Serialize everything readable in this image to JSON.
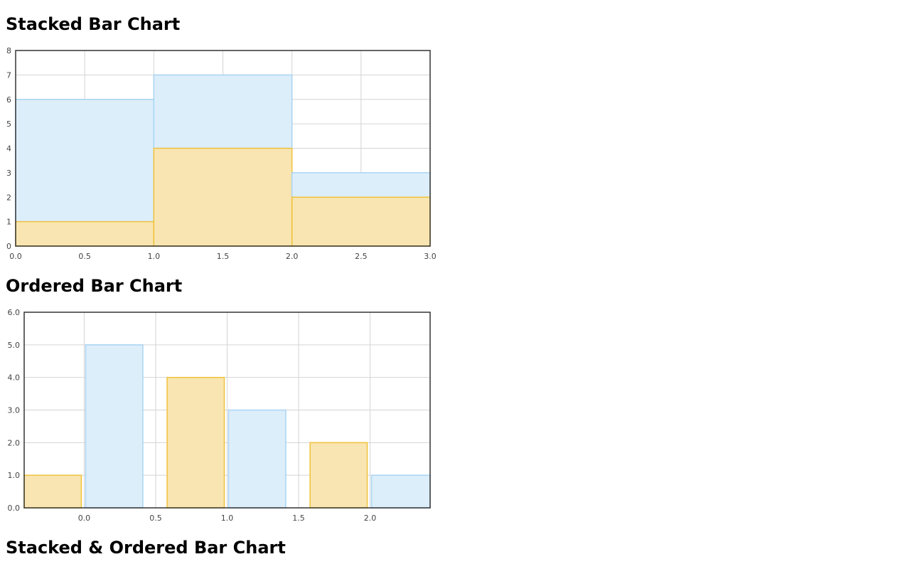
{
  "headings": {
    "stacked": "Stacked Bar Chart",
    "ordered": "Ordered Bar Chart",
    "stacked_ordered": "Stacked & Ordered Bar Chart"
  },
  "colors": {
    "series_a_fill": "#f8e5b1",
    "series_a_stroke": "#f0c23b",
    "series_b_fill": "#ddeefb",
    "series_b_stroke": "#a9d4f2",
    "grid": "#d4d4d4",
    "frame": "#333333"
  },
  "chart_data": [
    {
      "type": "bar",
      "stacked": true,
      "xlim": [
        0,
        3
      ],
      "ylim": [
        0,
        8
      ],
      "x_ticks": [
        "0.0",
        "0.5",
        "1.0",
        "1.5",
        "2.0",
        "2.5",
        "3.0"
      ],
      "y_ticks": [
        "0",
        "1",
        "2",
        "3",
        "4",
        "5",
        "6",
        "7",
        "8"
      ],
      "grid": true,
      "bars": [
        {
          "x0": 0,
          "x1": 1,
          "a": 1,
          "total": 6
        },
        {
          "x0": 1,
          "x1": 2,
          "a": 4,
          "total": 7
        },
        {
          "x0": 2,
          "x1": 3,
          "a": 2,
          "total": 3
        }
      ]
    },
    {
      "type": "bar",
      "stacked": false,
      "xlim": [
        -0.42,
        2.42
      ],
      "ylim": [
        0,
        6
      ],
      "x_ticks": [
        "0.0",
        "0.5",
        "1.0",
        "1.5",
        "2.0"
      ],
      "y_ticks": [
        "0.0",
        "1.0",
        "2.0",
        "3.0",
        "4.0",
        "5.0",
        "6.0"
      ],
      "grid": true,
      "bars": [
        {
          "series": "a",
          "x0": -0.42,
          "x1": -0.02,
          "value": 1
        },
        {
          "series": "b",
          "x0": 0.01,
          "x1": 0.41,
          "value": 5
        },
        {
          "series": "a",
          "x0": 0.58,
          "x1": 0.98,
          "value": 4
        },
        {
          "series": "b",
          "x0": 1.01,
          "x1": 1.41,
          "value": 3
        },
        {
          "series": "a",
          "x0": 1.58,
          "x1": 1.98,
          "value": 2
        },
        {
          "series": "b",
          "x0": 2.01,
          "x1": 2.42,
          "value": 1
        }
      ]
    }
  ]
}
